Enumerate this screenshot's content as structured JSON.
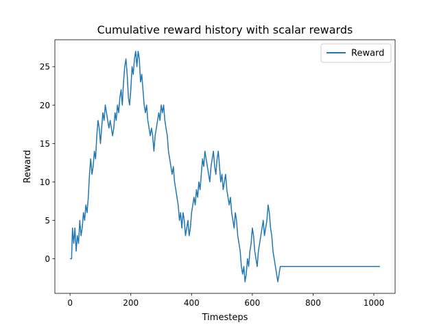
{
  "chart_data": {
    "type": "line",
    "title": "Cumulative reward history with scalar rewards",
    "xlabel": "Timesteps",
    "ylabel": "Reward",
    "xlim": [
      -50,
      1070
    ],
    "ylim": [
      -4.5,
      28.5
    ],
    "xticks": [
      0,
      200,
      400,
      600,
      800,
      1000
    ],
    "yticks": [
      0,
      5,
      10,
      15,
      20,
      25
    ],
    "grid": false,
    "legend": "top-right",
    "series": [
      {
        "name": "Reward",
        "color": "#1f77b4",
        "points": [
          [
            0,
            0
          ],
          [
            5,
            0
          ],
          [
            8,
            4
          ],
          [
            12,
            2
          ],
          [
            16,
            4
          ],
          [
            20,
            1
          ],
          [
            24,
            3
          ],
          [
            28,
            2
          ],
          [
            32,
            5
          ],
          [
            36,
            3
          ],
          [
            40,
            4
          ],
          [
            44,
            6
          ],
          [
            48,
            5
          ],
          [
            52,
            7
          ],
          [
            56,
            6
          ],
          [
            60,
            8
          ],
          [
            64,
            11
          ],
          [
            68,
            13
          ],
          [
            72,
            11
          ],
          [
            76,
            12
          ],
          [
            80,
            14
          ],
          [
            84,
            13
          ],
          [
            88,
            16
          ],
          [
            92,
            18
          ],
          [
            96,
            17
          ],
          [
            100,
            15
          ],
          [
            104,
            17
          ],
          [
            108,
            19
          ],
          [
            112,
            18
          ],
          [
            116,
            20
          ],
          [
            120,
            19
          ],
          [
            124,
            18
          ],
          [
            128,
            17
          ],
          [
            132,
            18
          ],
          [
            136,
            17
          ],
          [
            140,
            16
          ],
          [
            144,
            17
          ],
          [
            148,
            19
          ],
          [
            152,
            18
          ],
          [
            156,
            20
          ],
          [
            160,
            19
          ],
          [
            164,
            21
          ],
          [
            168,
            22
          ],
          [
            172,
            20
          ],
          [
            176,
            23
          ],
          [
            180,
            25
          ],
          [
            184,
            26
          ],
          [
            188,
            24
          ],
          [
            192,
            21
          ],
          [
            196,
            20
          ],
          [
            200,
            22
          ],
          [
            204,
            25
          ],
          [
            208,
            24
          ],
          [
            212,
            26
          ],
          [
            216,
            27
          ],
          [
            220,
            25
          ],
          [
            224,
            27
          ],
          [
            228,
            26
          ],
          [
            232,
            23
          ],
          [
            236,
            24
          ],
          [
            240,
            22
          ],
          [
            244,
            20
          ],
          [
            248,
            19
          ],
          [
            252,
            20
          ],
          [
            256,
            18
          ],
          [
            260,
            17
          ],
          [
            264,
            16
          ],
          [
            268,
            17
          ],
          [
            272,
            16
          ],
          [
            276,
            14
          ],
          [
            280,
            16
          ],
          [
            284,
            17
          ],
          [
            288,
            18
          ],
          [
            292,
            19
          ],
          [
            296,
            18
          ],
          [
            300,
            20
          ],
          [
            304,
            19
          ],
          [
            308,
            20
          ],
          [
            312,
            18
          ],
          [
            316,
            17
          ],
          [
            320,
            16
          ],
          [
            324,
            14
          ],
          [
            328,
            13
          ],
          [
            332,
            12
          ],
          [
            336,
            11
          ],
          [
            340,
            12
          ],
          [
            344,
            10
          ],
          [
            348,
            9
          ],
          [
            352,
            8
          ],
          [
            356,
            7
          ],
          [
            360,
            5
          ],
          [
            364,
            6
          ],
          [
            368,
            4
          ],
          [
            372,
            6
          ],
          [
            376,
            5
          ],
          [
            380,
            3
          ],
          [
            384,
            4
          ],
          [
            388,
            5
          ],
          [
            392,
            3
          ],
          [
            396,
            4
          ],
          [
            400,
            6
          ],
          [
            404,
            7
          ],
          [
            408,
            8
          ],
          [
            412,
            7
          ],
          [
            416,
            9
          ],
          [
            420,
            8
          ],
          [
            424,
            10
          ],
          [
            428,
            9
          ],
          [
            432,
            11
          ],
          [
            436,
            13
          ],
          [
            440,
            12
          ],
          [
            444,
            14
          ],
          [
            448,
            13
          ],
          [
            452,
            12
          ],
          [
            456,
            11
          ],
          [
            460,
            10
          ],
          [
            464,
            12
          ],
          [
            468,
            13
          ],
          [
            472,
            14
          ],
          [
            476,
            12
          ],
          [
            480,
            11
          ],
          [
            484,
            13
          ],
          [
            488,
            14
          ],
          [
            492,
            12
          ],
          [
            496,
            10
          ],
          [
            500,
            11
          ],
          [
            504,
            9
          ],
          [
            508,
            10
          ],
          [
            512,
            11
          ],
          [
            516,
            9
          ],
          [
            520,
            8
          ],
          [
            524,
            7
          ],
          [
            528,
            8
          ],
          [
            532,
            6
          ],
          [
            536,
            5
          ],
          [
            540,
            4
          ],
          [
            544,
            6
          ],
          [
            548,
            5
          ],
          [
            552,
            3
          ],
          [
            556,
            2
          ],
          [
            560,
            1
          ],
          [
            564,
            -1
          ],
          [
            568,
            -2
          ],
          [
            572,
            -1
          ],
          [
            576,
            -3
          ],
          [
            580,
            -2
          ],
          [
            584,
            0
          ],
          [
            588,
            -1
          ],
          [
            592,
            1
          ],
          [
            596,
            2
          ],
          [
            600,
            4
          ],
          [
            604,
            3
          ],
          [
            608,
            1
          ],
          [
            612,
            0
          ],
          [
            616,
            -1
          ],
          [
            620,
            1
          ],
          [
            624,
            2
          ],
          [
            628,
            3
          ],
          [
            632,
            4
          ],
          [
            636,
            5
          ],
          [
            640,
            3
          ],
          [
            644,
            4
          ],
          [
            648,
            5
          ],
          [
            652,
            7
          ],
          [
            656,
            6
          ],
          [
            660,
            4
          ],
          [
            664,
            3
          ],
          [
            668,
            1
          ],
          [
            672,
            0
          ],
          [
            676,
            -1
          ],
          [
            680,
            -2
          ],
          [
            684,
            -3
          ],
          [
            688,
            -2
          ],
          [
            692,
            -1
          ],
          [
            1020,
            -1
          ]
        ]
      }
    ]
  }
}
